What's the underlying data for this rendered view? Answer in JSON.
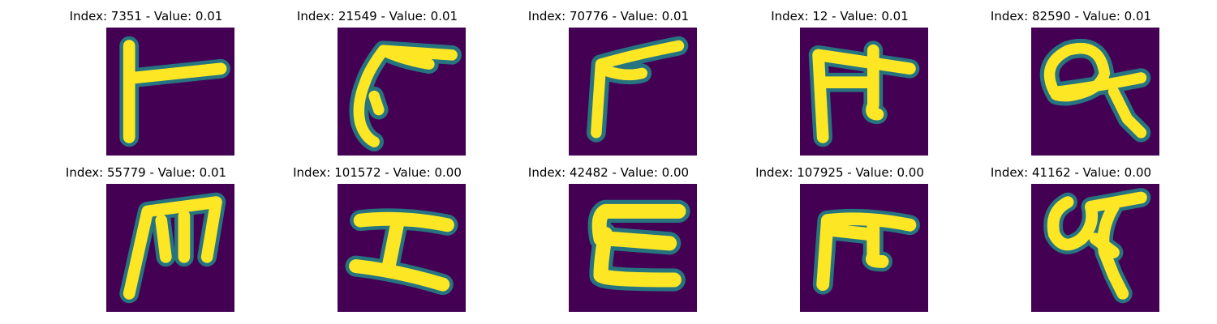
{
  "colors": {
    "background": "#440154",
    "mid": "#21918c",
    "stroke": "#fde725"
  },
  "panels": [
    {
      "title": "Index: 7351 - Value: 0.01",
      "glyph": "character-like-r-shape"
    },
    {
      "title": "Index: 21549 - Value: 0.01",
      "glyph": "character-like-curved-hook"
    },
    {
      "title": "Index: 70776 - Value: 0.01",
      "glyph": "character-like-angled-stroke"
    },
    {
      "title": "Index: 12 - Value: 0.01",
      "glyph": "character-like-pi-shape"
    },
    {
      "title": "Index: 82590 - Value: 0.01",
      "glyph": "character-like-loop-with-tail"
    },
    {
      "title": "Index: 55779 - Value: 0.01",
      "glyph": "character-like-m-shape"
    },
    {
      "title": "Index: 101572 - Value: 0.00",
      "glyph": "character-like-z-shape"
    },
    {
      "title": "Index: 42482 - Value: 0.00",
      "glyph": "character-like-c-shape"
    },
    {
      "title": "Index: 107925 - Value: 0.00",
      "glyph": "character-like-pi-shape"
    },
    {
      "title": "Index: 41162 - Value: 0.00",
      "glyph": "character-like-loop-with-stem"
    }
  ]
}
